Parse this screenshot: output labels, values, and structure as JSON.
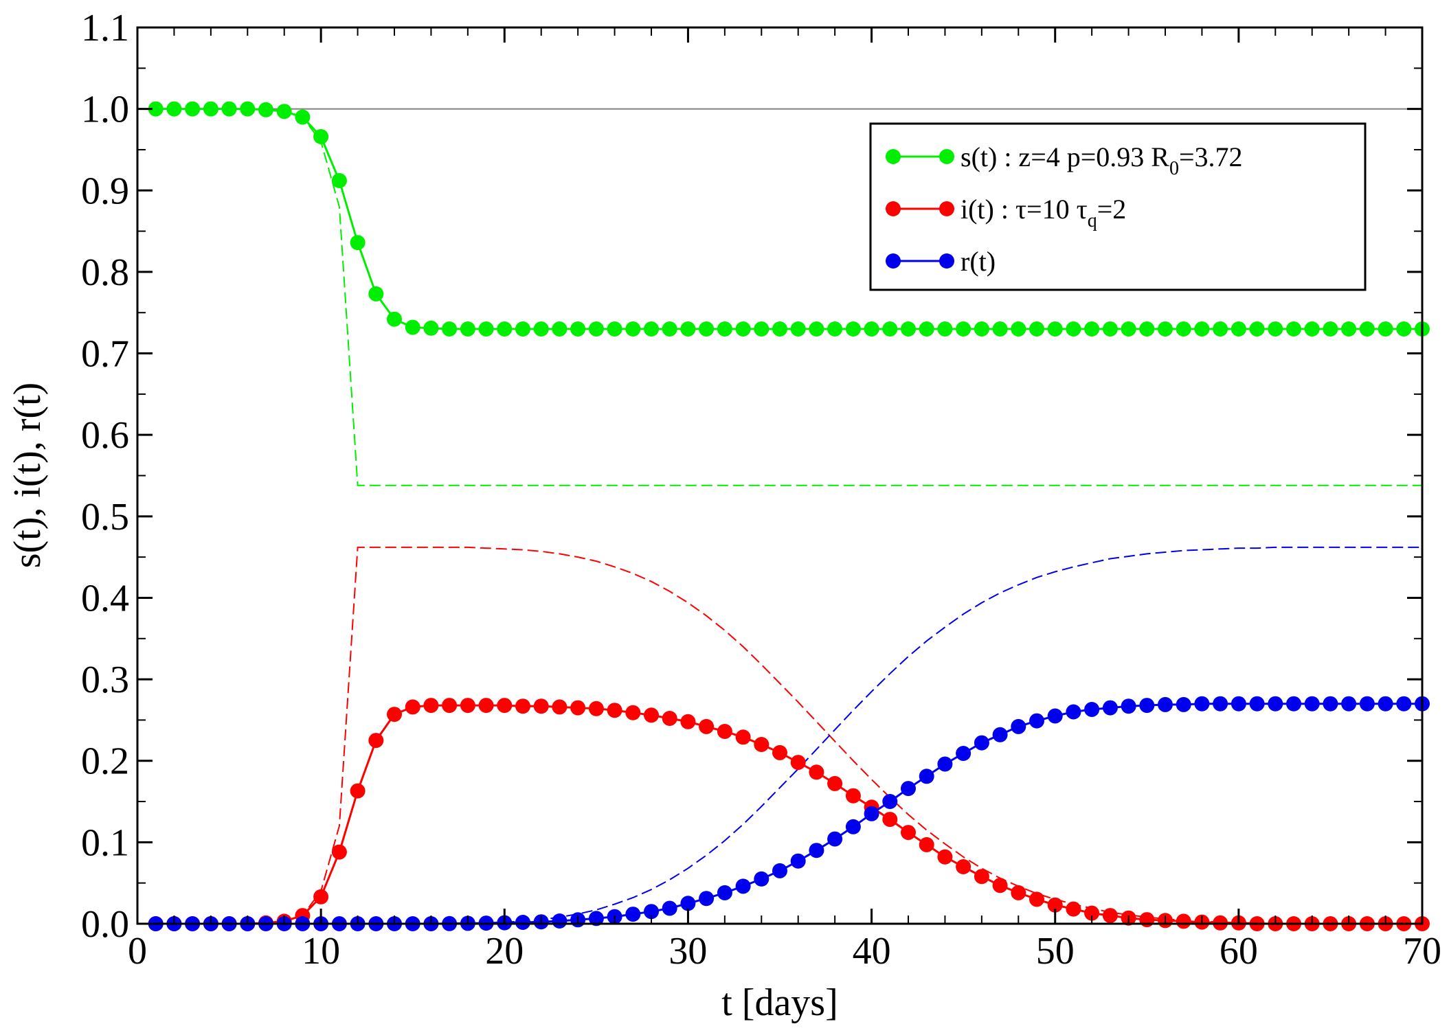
{
  "chart_data": {
    "type": "line",
    "title": "",
    "xlabel": "t [days]",
    "ylabel": "s(t), i(t), r(t)",
    "xlim": [
      0,
      70
    ],
    "ylim": [
      0,
      1.1
    ],
    "x_ticks": [
      "0",
      "10",
      "20",
      "30",
      "40",
      "50",
      "60",
      "70"
    ],
    "y_ticks": [
      "0.0",
      "0.1",
      "0.2",
      "0.3",
      "0.4",
      "0.5",
      "0.6",
      "0.7",
      "0.8",
      "0.9",
      "1.0",
      "1.1"
    ],
    "reference_line": {
      "y": 1.0,
      "color": "#808080"
    },
    "legend": {
      "placement": "top-right",
      "entries": [
        {
          "series": 0,
          "text": "s(t) : z=4  p=0.93  R",
          "sub": "0",
          "text_after": "=3.72"
        },
        {
          "series": 1,
          "text": "i(t) : τ=10  τ",
          "sub": "q",
          "text_after": "=2"
        },
        {
          "series": 2,
          "text": "r(t)",
          "sub": "",
          "text_after": ""
        }
      ]
    },
    "x": [
      1,
      2,
      3,
      4,
      5,
      6,
      7,
      8,
      9,
      10,
      11,
      12,
      13,
      14,
      15,
      16,
      17,
      18,
      19,
      20,
      21,
      22,
      23,
      24,
      25,
      26,
      27,
      28,
      29,
      30,
      31,
      32,
      33,
      34,
      35,
      36,
      37,
      38,
      39,
      40,
      41,
      42,
      43,
      44,
      45,
      46,
      47,
      48,
      49,
      50,
      51,
      52,
      53,
      54,
      55,
      56,
      57,
      58,
      59,
      60,
      61,
      62,
      63,
      64,
      65,
      66,
      67,
      68,
      69,
      70
    ],
    "series": [
      {
        "name": "s(t)",
        "color": "#00ee00",
        "style": "markers-line",
        "values": [
          1.0,
          1.0,
          1.0,
          1.0,
          1.0,
          1.0,
          0.999,
          0.997,
          0.99,
          0.966,
          0.912,
          0.836,
          0.773,
          0.742,
          0.732,
          0.731,
          0.73,
          0.73,
          0.73,
          0.73,
          0.73,
          0.73,
          0.73,
          0.73,
          0.73,
          0.73,
          0.73,
          0.73,
          0.73,
          0.73,
          0.73,
          0.73,
          0.73,
          0.73,
          0.73,
          0.73,
          0.73,
          0.73,
          0.73,
          0.73,
          0.73,
          0.73,
          0.73,
          0.73,
          0.73,
          0.73,
          0.73,
          0.73,
          0.73,
          0.73,
          0.73,
          0.73,
          0.73,
          0.73,
          0.73,
          0.73,
          0.73,
          0.73,
          0.73,
          0.73,
          0.73,
          0.73,
          0.73,
          0.73,
          0.73,
          0.73,
          0.73,
          0.73,
          0.73,
          0.73
        ]
      },
      {
        "name": "i(t)",
        "color": "#ff0000",
        "style": "markers-line",
        "values": [
          0,
          0,
          0,
          0,
          0,
          0,
          0.001,
          0.003,
          0.01,
          0.033,
          0.088,
          0.163,
          0.225,
          0.257,
          0.266,
          0.268,
          0.268,
          0.268,
          0.268,
          0.268,
          0.267,
          0.267,
          0.266,
          0.265,
          0.264,
          0.262,
          0.259,
          0.256,
          0.252,
          0.248,
          0.242,
          0.236,
          0.229,
          0.22,
          0.21,
          0.198,
          0.186,
          0.172,
          0.157,
          0.143,
          0.128,
          0.112,
          0.097,
          0.082,
          0.07,
          0.058,
          0.047,
          0.038,
          0.03,
          0.023,
          0.018,
          0.013,
          0.01,
          0.007,
          0.005,
          0.004,
          0.003,
          0.002,
          0.001,
          0.001,
          0,
          0,
          0,
          0,
          0,
          0,
          0,
          0,
          0,
          0
        ]
      },
      {
        "name": "r(t)",
        "color": "#0000ee",
        "style": "markers-line",
        "values": [
          0,
          0,
          0,
          0,
          0,
          0,
          0,
          0,
          0,
          0,
          0,
          0,
          0,
          0,
          0,
          0,
          0.0002,
          0.0005,
          0.0008,
          0.0012,
          0.0017,
          0.0024,
          0.0034,
          0.0048,
          0.0065,
          0.0087,
          0.0117,
          0.015,
          0.019,
          0.025,
          0.031,
          0.038,
          0.046,
          0.055,
          0.065,
          0.077,
          0.09,
          0.104,
          0.119,
          0.135,
          0.15,
          0.166,
          0.181,
          0.196,
          0.209,
          0.222,
          0.232,
          0.242,
          0.249,
          0.255,
          0.26,
          0.263,
          0.265,
          0.267,
          0.268,
          0.269,
          0.269,
          0.27,
          0.27,
          0.27,
          0.27,
          0.27,
          0.27,
          0.27,
          0.27,
          0.27,
          0.27,
          0.27,
          0.27,
          0.27
        ]
      },
      {
        "name": "s(t) dashed",
        "color": "#00ee00",
        "style": "dashed",
        "values": [
          1.0,
          1.0,
          1.0,
          1.0,
          1.0,
          1.0,
          0.999,
          0.997,
          0.99,
          0.96,
          0.88,
          0.538,
          0.538,
          0.538,
          0.538,
          0.538,
          0.538,
          0.538,
          0.538,
          0.538,
          0.538,
          0.538,
          0.538,
          0.538,
          0.538,
          0.538,
          0.538,
          0.538,
          0.538,
          0.538,
          0.538,
          0.538,
          0.538,
          0.538,
          0.538,
          0.538,
          0.538,
          0.538,
          0.538,
          0.538,
          0.538,
          0.538,
          0.538,
          0.538,
          0.538,
          0.538,
          0.538,
          0.538,
          0.538,
          0.538,
          0.538,
          0.538,
          0.538,
          0.538,
          0.538,
          0.538,
          0.538,
          0.538,
          0.538,
          0.538,
          0.538,
          0.538,
          0.538,
          0.538,
          0.538,
          0.538,
          0.538,
          0.538,
          0.538,
          0.538
        ]
      },
      {
        "name": "i(t) dashed",
        "color": "#ff0000",
        "style": "dashed",
        "values": [
          0,
          0,
          0,
          0,
          0,
          0,
          0.001,
          0.003,
          0.01,
          0.04,
          0.12,
          0.462,
          0.462,
          0.462,
          0.462,
          0.462,
          0.462,
          0.462,
          0.461,
          0.46,
          0.459,
          0.457,
          0.454,
          0.45,
          0.445,
          0.438,
          0.43,
          0.42,
          0.408,
          0.394,
          0.378,
          0.36,
          0.34,
          0.318,
          0.295,
          0.272,
          0.248,
          0.224,
          0.2,
          0.177,
          0.155,
          0.134,
          0.115,
          0.098,
          0.082,
          0.068,
          0.056,
          0.046,
          0.037,
          0.03,
          0.024,
          0.019,
          0.014,
          0.011,
          0.008,
          0.006,
          0.004,
          0.003,
          0.002,
          0.001,
          0.001,
          0,
          0,
          0,
          0,
          0,
          0,
          0,
          0,
          0
        ]
      },
      {
        "name": "r(t) dashed",
        "color": "#0000ee",
        "style": "dashed",
        "values": [
          0,
          0,
          0,
          0,
          0,
          0,
          0,
          0,
          0,
          0,
          0,
          0,
          0,
          0,
          0,
          0,
          0,
          0,
          0.001,
          0.002,
          0.003,
          0.005,
          0.008,
          0.012,
          0.017,
          0.024,
          0.032,
          0.042,
          0.054,
          0.068,
          0.084,
          0.102,
          0.122,
          0.144,
          0.167,
          0.19,
          0.214,
          0.238,
          0.262,
          0.285,
          0.307,
          0.328,
          0.347,
          0.364,
          0.38,
          0.394,
          0.406,
          0.416,
          0.425,
          0.432,
          0.438,
          0.443,
          0.448,
          0.451,
          0.454,
          0.456,
          0.458,
          0.459,
          0.46,
          0.461,
          0.461,
          0.462,
          0.462,
          0.462,
          0.462,
          0.462,
          0.462,
          0.462,
          0.462,
          0.462
        ]
      }
    ]
  }
}
